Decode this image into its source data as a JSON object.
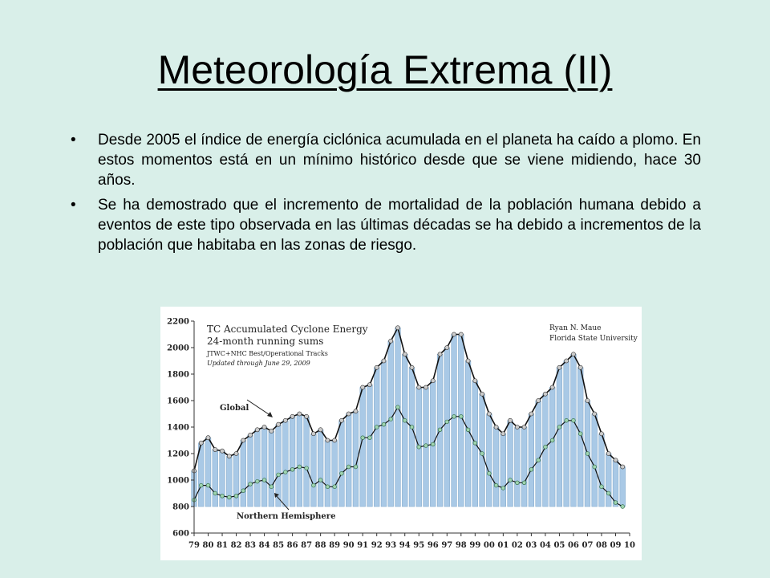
{
  "slide": {
    "title": "Meteorología Extrema (II)",
    "bullets": [
      "Desde 2005 el índice de energía ciclónica acumulada en el planeta ha caído a plomo. En estos momentos está en un mínimo histórico desde que se viene midiendo, hace 30 años.",
      "Se ha demostrado que el incremento de mortalidad de la población humana debido a eventos de este tipo observada en las últimas décadas se ha debido a incrementos de la población que habitaba en las zonas de riesgo."
    ]
  },
  "chart_data": {
    "type": "line",
    "title": "TC Accumulated Cyclone Energy",
    "subtitle": "24-month running sums",
    "source_line": "JTWC+NHC Best/Operational Tracks",
    "updated_line": "Updated through June 29, 2009",
    "author": "Ryan N. Maue",
    "affiliation": "Florida State University",
    "annotations": [
      "Global",
      "Northern Hemisphere"
    ],
    "xlim": [
      1979,
      2010
    ],
    "ylim": [
      600,
      2200
    ],
    "x_tick_labels": [
      "79",
      "80",
      "81",
      "82",
      "83",
      "84",
      "85",
      "86",
      "87",
      "88",
      "89",
      "90",
      "91",
      "92",
      "93",
      "94",
      "95",
      "96",
      "97",
      "98",
      "99",
      "00",
      "01",
      "02",
      "03",
      "04",
      "05",
      "06",
      "07",
      "08",
      "09",
      "10"
    ],
    "y_ticks": [
      600,
      800,
      1000,
      1200,
      1400,
      1600,
      1800,
      2000,
      2200
    ],
    "grid": false,
    "colors": {
      "global_fill": "#a9c9e6",
      "global_line": "#111111",
      "nh_marker": "#9fd3b0",
      "global_marker": "#cccccc"
    },
    "series": [
      {
        "name": "Global",
        "x": [
          1979.0,
          1979.5,
          1980.0,
          1980.5,
          1981.0,
          1981.5,
          1982.0,
          1982.5,
          1983.0,
          1983.5,
          1984.0,
          1984.5,
          1985.0,
          1985.5,
          1986.0,
          1986.5,
          1987.0,
          1987.5,
          1988.0,
          1988.5,
          1989.0,
          1989.5,
          1990.0,
          1990.5,
          1991.0,
          1991.5,
          1992.0,
          1992.5,
          1993.0,
          1993.5,
          1994.0,
          1994.5,
          1995.0,
          1995.5,
          1996.0,
          1996.5,
          1997.0,
          1997.5,
          1998.0,
          1998.5,
          1999.0,
          1999.5,
          2000.0,
          2000.5,
          2001.0,
          2001.5,
          2002.0,
          2002.5,
          2003.0,
          2003.5,
          2004.0,
          2004.5,
          2005.0,
          2005.5,
          2006.0,
          2006.5,
          2007.0,
          2007.5,
          2008.0,
          2008.5,
          2009.0,
          2009.5
        ],
        "values": [
          1070,
          1280,
          1320,
          1230,
          1220,
          1180,
          1200,
          1300,
          1340,
          1380,
          1400,
          1370,
          1420,
          1450,
          1480,
          1500,
          1480,
          1350,
          1380,
          1300,
          1300,
          1450,
          1500,
          1520,
          1700,
          1720,
          1850,
          1900,
          2050,
          2150,
          1950,
          1850,
          1700,
          1700,
          1750,
          1950,
          2000,
          2100,
          2100,
          1900,
          1750,
          1650,
          1500,
          1400,
          1350,
          1450,
          1400,
          1400,
          1500,
          1600,
          1650,
          1700,
          1850,
          1900,
          1950,
          1850,
          1600,
          1500,
          1350,
          1200,
          1150,
          1100
        ]
      },
      {
        "name": "Northern Hemisphere",
        "x": [
          1979.0,
          1979.5,
          1980.0,
          1980.5,
          1981.0,
          1981.5,
          1982.0,
          1982.5,
          1983.0,
          1983.5,
          1984.0,
          1984.5,
          1985.0,
          1985.5,
          1986.0,
          1986.5,
          1987.0,
          1987.5,
          1988.0,
          1988.5,
          1989.0,
          1989.5,
          1990.0,
          1990.5,
          1991.0,
          1991.5,
          1992.0,
          1992.5,
          1993.0,
          1993.5,
          1994.0,
          1994.5,
          1995.0,
          1995.5,
          1996.0,
          1996.5,
          1997.0,
          1997.5,
          1998.0,
          1998.5,
          1999.0,
          1999.5,
          2000.0,
          2000.5,
          2001.0,
          2001.5,
          2002.0,
          2002.5,
          2003.0,
          2003.5,
          2004.0,
          2004.5,
          2005.0,
          2005.5,
          2006.0,
          2006.5,
          2007.0,
          2007.5,
          2008.0,
          2008.5,
          2009.0,
          2009.5
        ],
        "values": [
          850,
          960,
          960,
          900,
          880,
          870,
          880,
          920,
          970,
          990,
          1000,
          950,
          1040,
          1060,
          1080,
          1100,
          1090,
          960,
          1000,
          950,
          950,
          1050,
          1100,
          1100,
          1320,
          1320,
          1400,
          1420,
          1460,
          1550,
          1450,
          1400,
          1250,
          1260,
          1270,
          1380,
          1440,
          1480,
          1480,
          1380,
          1280,
          1200,
          1050,
          960,
          940,
          1000,
          980,
          980,
          1080,
          1150,
          1250,
          1300,
          1400,
          1450,
          1450,
          1350,
          1200,
          1100,
          950,
          900,
          830,
          800
        ]
      }
    ]
  }
}
